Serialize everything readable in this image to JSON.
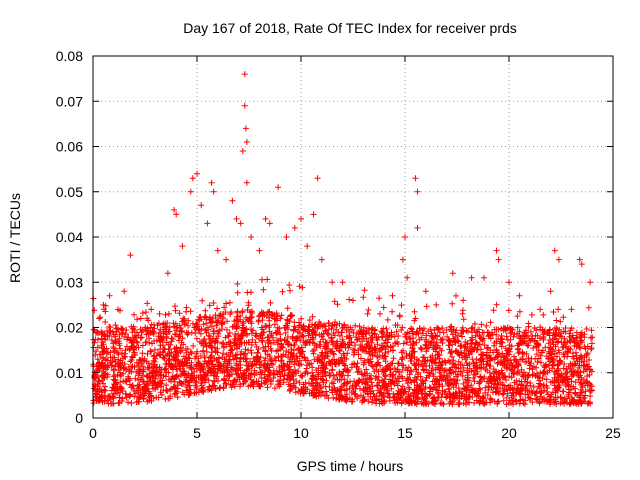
{
  "chart_data": {
    "type": "scatter",
    "title": "Day 167 of 2018, Rate Of TEC Index for receiver prds",
    "xlabel": "GPS time / hours",
    "ylabel": "ROTI / TECUs",
    "xlim": [
      0,
      25
    ],
    "ylim": [
      0,
      0.08
    ],
    "grid": true,
    "marker": "+",
    "color": "#ff0000",
    "x_ticks": [
      0,
      5,
      10,
      15,
      20,
      25
    ],
    "x_tick_labels": [
      "0",
      "5",
      "10",
      "15",
      "20",
      "25"
    ],
    "y_ticks": [
      0,
      0.01,
      0.02,
      0.03,
      0.04,
      0.05,
      0.06,
      0.07,
      0.08
    ],
    "y_tick_labels": [
      "0",
      "0.01",
      "0.02",
      "0.03",
      "0.04",
      "0.05",
      "0.06",
      "0.07",
      "0.08"
    ],
    "series": [
      {
        "name": "ROTI",
        "x_range_observed": [
          0,
          24
        ],
        "dense_band_y": [
          0.003,
          0.02
        ],
        "points": [
          [
            0.3,
            0.022
          ],
          [
            0.5,
            0.025
          ],
          [
            0.8,
            0.027
          ],
          [
            1.2,
            0.024
          ],
          [
            1.5,
            0.028
          ],
          [
            1.8,
            0.036
          ],
          [
            2.3,
            0.022
          ],
          [
            2.8,
            0.024
          ],
          [
            3.2,
            0.023
          ],
          [
            3.6,
            0.032
          ],
          [
            3.9,
            0.046
          ],
          [
            4.0,
            0.045
          ],
          [
            4.3,
            0.038
          ],
          [
            4.7,
            0.05
          ],
          [
            4.8,
            0.053
          ],
          [
            5.0,
            0.054
          ],
          [
            5.2,
            0.047
          ],
          [
            5.5,
            0.043
          ],
          [
            5.7,
            0.052
          ],
          [
            5.8,
            0.05
          ],
          [
            6.0,
            0.037
          ],
          [
            6.4,
            0.035
          ],
          [
            6.7,
            0.048
          ],
          [
            6.9,
            0.044
          ],
          [
            7.1,
            0.043
          ],
          [
            7.2,
            0.059
          ],
          [
            7.3,
            0.076
          ],
          [
            7.3,
            0.069
          ],
          [
            7.35,
            0.064
          ],
          [
            7.4,
            0.061
          ],
          [
            7.4,
            0.052
          ],
          [
            7.6,
            0.04
          ],
          [
            8.0,
            0.037
          ],
          [
            8.3,
            0.044
          ],
          [
            8.5,
            0.043
          ],
          [
            8.9,
            0.051
          ],
          [
            9.3,
            0.04
          ],
          [
            9.7,
            0.042
          ],
          [
            10.0,
            0.044
          ],
          [
            10.3,
            0.038
          ],
          [
            10.6,
            0.045
          ],
          [
            10.8,
            0.053
          ],
          [
            11.0,
            0.035
          ],
          [
            11.5,
            0.03
          ],
          [
            12.0,
            0.03
          ],
          [
            12.5,
            0.026
          ],
          [
            13.2,
            0.023
          ],
          [
            13.8,
            0.023
          ],
          [
            14.4,
            0.027
          ],
          [
            14.9,
            0.035
          ],
          [
            15.0,
            0.04
          ],
          [
            15.1,
            0.031
          ],
          [
            15.5,
            0.053
          ],
          [
            15.6,
            0.05
          ],
          [
            15.6,
            0.042
          ],
          [
            16.0,
            0.028
          ],
          [
            16.5,
            0.025
          ],
          [
            17.3,
            0.032
          ],
          [
            17.8,
            0.026
          ],
          [
            18.2,
            0.031
          ],
          [
            18.8,
            0.031
          ],
          [
            19.4,
            0.037
          ],
          [
            19.5,
            0.035
          ],
          [
            20.0,
            0.03
          ],
          [
            20.5,
            0.027
          ],
          [
            21.5,
            0.024
          ],
          [
            22.0,
            0.028
          ],
          [
            22.2,
            0.037
          ],
          [
            22.4,
            0.035
          ],
          [
            23.0,
            0.024
          ],
          [
            23.4,
            0.035
          ],
          [
            23.5,
            0.034
          ],
          [
            23.9,
            0.03
          ]
        ]
      }
    ]
  }
}
